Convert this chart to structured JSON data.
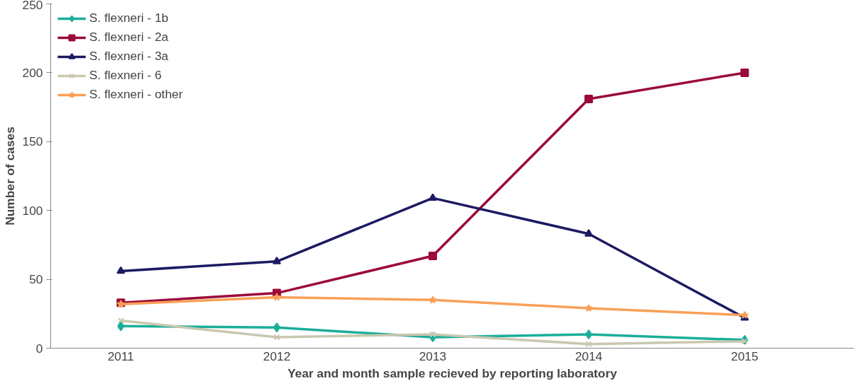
{
  "chart_data": {
    "type": "line",
    "xlabel": "Year and month sample recieved by reporting laboratory",
    "ylabel": "Number of cases",
    "categories": [
      "2011",
      "2012",
      "2013",
      "2014",
      "2015"
    ],
    "ylim": [
      0,
      250
    ],
    "yticks": [
      0,
      50,
      100,
      150,
      200,
      250
    ],
    "grid": false,
    "legend": "top left",
    "series": [
      {
        "name": "S. flexneri - 1b",
        "color": "#1aae9a",
        "marker": "diamond",
        "values": [
          16,
          15,
          8,
          10,
          6
        ]
      },
      {
        "name": "S. flexneri - 2a",
        "color": "#9b0a3a",
        "marker": "square",
        "values": [
          33,
          40,
          67,
          181,
          200
        ]
      },
      {
        "name": "S. flexneri - 3a",
        "color": "#1c1a62",
        "marker": "triangle",
        "values": [
          56,
          63,
          109,
          83,
          22
        ]
      },
      {
        "name": "S. flexneri - 6",
        "color": "#c9c7b0",
        "marker": "cross",
        "values": [
          20,
          8,
          10,
          3,
          5
        ]
      },
      {
        "name": "S. flexneri - other",
        "color": "#f8a057",
        "marker": "star",
        "values": [
          32,
          37,
          35,
          29,
          24
        ]
      }
    ]
  }
}
